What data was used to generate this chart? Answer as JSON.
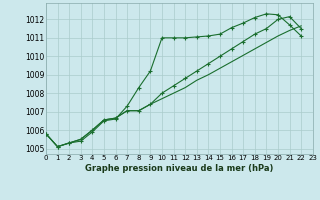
{
  "title": "Graphe pression niveau de la mer (hPa)",
  "background_color": "#cce8ec",
  "grid_color": "#aacccc",
  "line_color": "#1a6e2e",
  "x_labels": [
    "0",
    "1",
    "2",
    "3",
    "4",
    "5",
    "6",
    "7",
    "8",
    "9",
    "10",
    "11",
    "12",
    "13",
    "14",
    "15",
    "16",
    "17",
    "18",
    "19",
    "20",
    "21",
    "22",
    "23"
  ],
  "xlim": [
    0,
    23
  ],
  "ylim": [
    1004.7,
    1012.9
  ],
  "yticks": [
    1005,
    1006,
    1007,
    1008,
    1009,
    1010,
    1011,
    1012
  ],
  "line1": [
    1005.8,
    1005.1,
    1005.3,
    1005.4,
    1005.9,
    1006.5,
    1006.6,
    1007.3,
    1008.3,
    1009.2,
    1011.0,
    1011.0,
    1011.0,
    1011.05,
    1011.1,
    1011.2,
    1011.55,
    1011.8,
    1012.1,
    1012.3,
    1012.25,
    1011.7,
    1011.1,
    null
  ],
  "line2": [
    1005.8,
    1005.1,
    1005.3,
    1005.5,
    1006.0,
    1006.55,
    1006.65,
    1007.05,
    1007.05,
    1007.4,
    1008.0,
    1008.4,
    1008.8,
    1009.2,
    1009.6,
    1010.0,
    1010.4,
    1010.8,
    1011.2,
    1011.5,
    1012.0,
    1012.15,
    1011.5,
    null
  ],
  "line3": [
    1005.8,
    1005.1,
    1005.3,
    1005.5,
    1006.0,
    1006.55,
    1006.65,
    1007.05,
    1007.05,
    1007.4,
    1007.7,
    1008.0,
    1008.3,
    1008.7,
    1009.0,
    1009.35,
    1009.7,
    1010.05,
    1010.4,
    1010.75,
    1011.1,
    1011.4,
    1011.65,
    null
  ]
}
